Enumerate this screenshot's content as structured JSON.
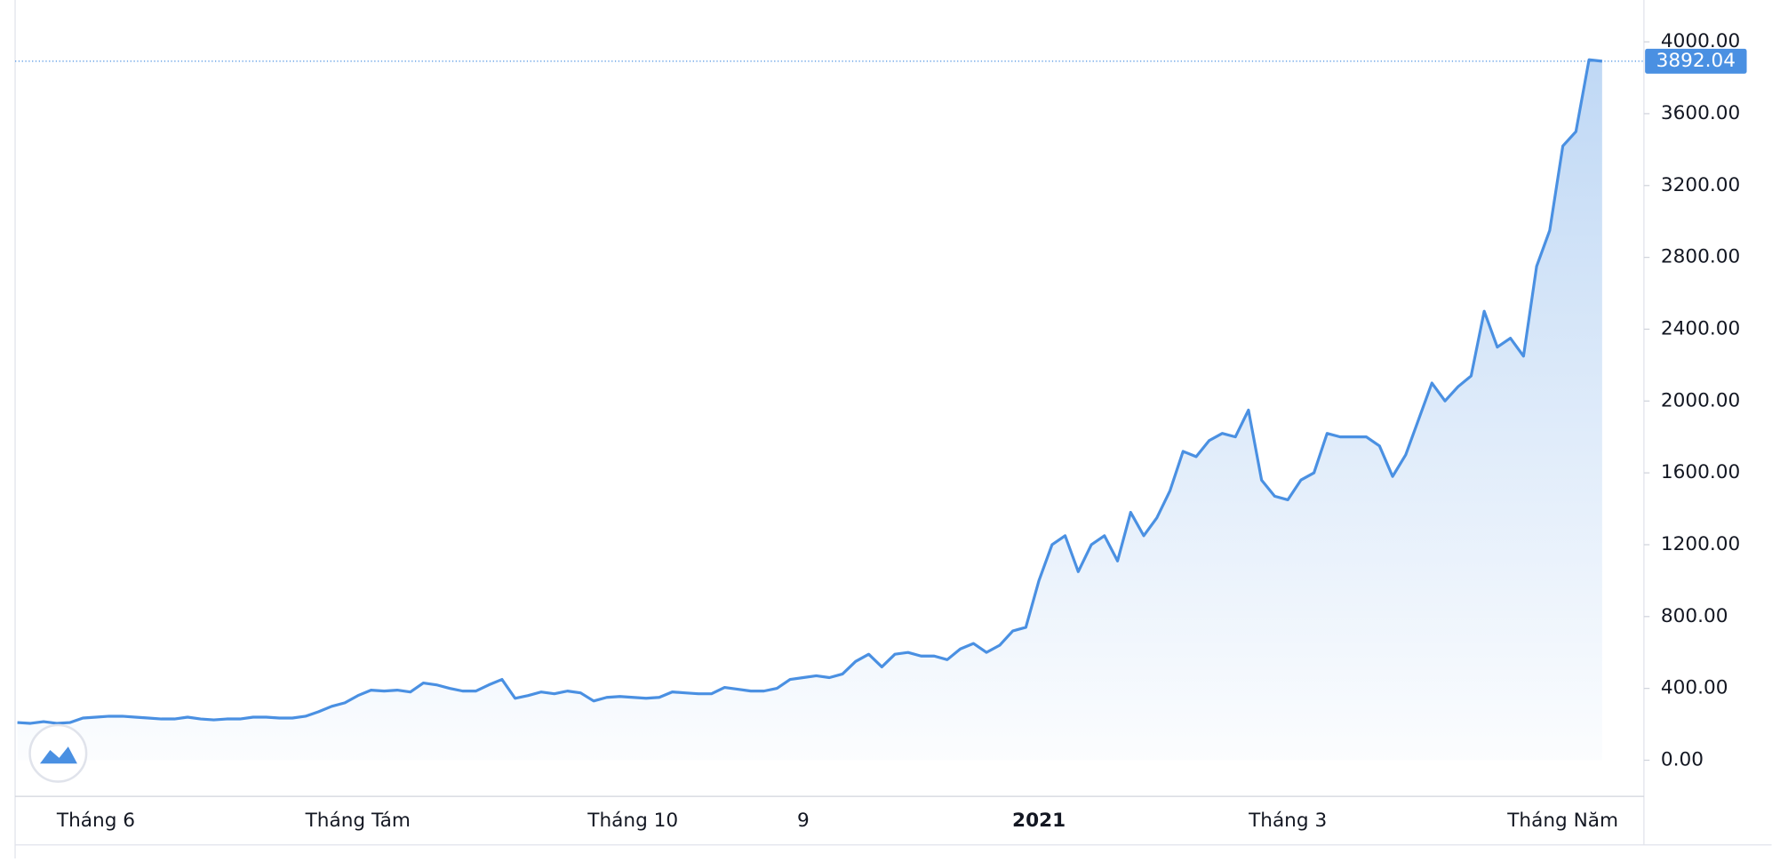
{
  "chart_data": {
    "type": "area",
    "categories": [
      null,
      null,
      null,
      null,
      null,
      null,
      "Tháng 6",
      null,
      null,
      null,
      null,
      null,
      null,
      null,
      null,
      null,
      null,
      null,
      null,
      null,
      null,
      null,
      null,
      null,
      null,
      null,
      "Tháng Tám",
      null,
      null,
      null,
      null,
      null,
      null,
      null,
      null,
      null,
      null,
      null,
      null,
      null,
      null,
      null,
      null,
      null,
      null,
      null,
      null,
      "Tháng 10",
      null,
      null,
      null,
      null,
      null,
      null,
      null,
      null,
      null,
      null,
      null,
      null,
      "9",
      null,
      null,
      null,
      null,
      null,
      null,
      null,
      null,
      null,
      null,
      null,
      null,
      null,
      null,
      null,
      null,
      null,
      "2021",
      null,
      null,
      null,
      null,
      null,
      null,
      null,
      null,
      null,
      null,
      null,
      null,
      null,
      null,
      null,
      null,
      null,
      null,
      "Tháng 3",
      null,
      null,
      null,
      null,
      null,
      null,
      null,
      null,
      null,
      null,
      null,
      null,
      null,
      null,
      null,
      null,
      null,
      null,
      null,
      null,
      "Tháng Năm",
      null,
      null,
      null
    ],
    "series": [
      {
        "color": "#4a90e2",
        "values": [
          210,
          205,
          215,
          205,
          210,
          235,
          240,
          245,
          245,
          240,
          235,
          230,
          230,
          240,
          230,
          225,
          230,
          230,
          240,
          240,
          235,
          235,
          245,
          270,
          300,
          320,
          360,
          390,
          385,
          390,
          380,
          430,
          420,
          400,
          385,
          385,
          420,
          450,
          345,
          360,
          380,
          370,
          385,
          375,
          330,
          350,
          355,
          350,
          345,
          350,
          380,
          375,
          370,
          370,
          405,
          395,
          385,
          385,
          400,
          450,
          460,
          470,
          460,
          480,
          550,
          590,
          520,
          590,
          600,
          580,
          580,
          560,
          620,
          650,
          600,
          640,
          720,
          740,
          1000,
          1200,
          1250,
          1050,
          1200,
          1250,
          1110,
          1380,
          1250,
          1350,
          1500,
          1720,
          1690,
          1780,
          1820,
          1800,
          1950,
          1560,
          1470,
          1450,
          1560,
          1600,
          1820,
          1800,
          1800,
          1800,
          1750,
          1580,
          1700,
          1900,
          2100,
          2000,
          2080,
          2140,
          2500,
          2300,
          2350,
          2250,
          2750,
          2950,
          3420,
          3500,
          3900,
          3892.04
        ]
      }
    ],
    "ylim": [
      -201,
      4233
    ],
    "yticks": [
      {
        "value": 0,
        "label": "0.00"
      },
      {
        "value": 400,
        "label": "400.00"
      },
      {
        "value": 800,
        "label": "800.00"
      },
      {
        "value": 1200,
        "label": "1200.00"
      },
      {
        "value": 1600,
        "label": "1600.00"
      },
      {
        "value": 2000,
        "label": "2000.00"
      },
      {
        "value": 2400,
        "label": "2400.00"
      },
      {
        "value": 2800,
        "label": "2800.00"
      },
      {
        "value": 3200,
        "label": "3200.00"
      },
      {
        "value": 3600,
        "label": "3600.00"
      },
      {
        "value": 4000,
        "label": "4000.00"
      }
    ]
  }
}
